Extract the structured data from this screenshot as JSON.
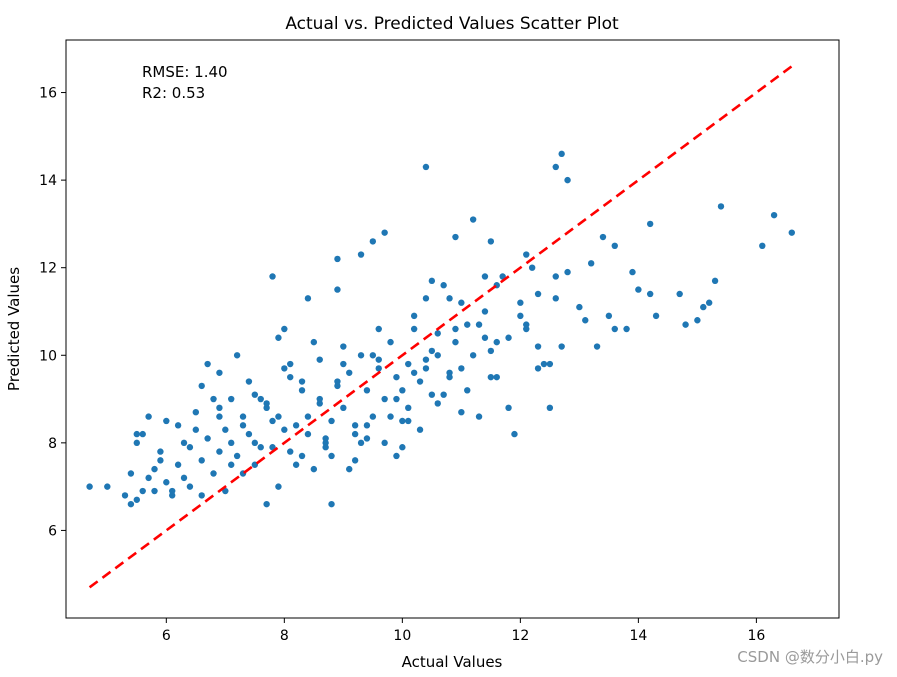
{
  "chart_data": {
    "type": "scatter",
    "title": "Actual vs. Predicted Values Scatter Plot",
    "xlabel": "Actual Values",
    "ylabel": "Predicted Values",
    "xlim": [
      4.3,
      17.4
    ],
    "ylim": [
      4.0,
      17.2
    ],
    "xticks": [
      "6",
      "8",
      "10",
      "12",
      "14",
      "16"
    ],
    "xtick_values": [
      6,
      8,
      10,
      12,
      14,
      16
    ],
    "yticks": [
      "6",
      "8",
      "10",
      "12",
      "14",
      "16"
    ],
    "ytick_values": [
      6,
      8,
      10,
      12,
      14,
      16
    ],
    "grid": false,
    "legend": "none",
    "annotations": [
      "RMSE: 1.40",
      "R2: 0.53"
    ],
    "points_color": "#1f77b4",
    "reference_line": {
      "style": "dashed",
      "color": "#ff0000",
      "x": [
        4.7,
        16.6
      ],
      "y": [
        4.7,
        16.6
      ]
    },
    "series": [
      {
        "x": [
          4.7,
          5.0,
          5.3,
          5.4,
          5.5,
          5.6,
          5.4,
          5.7,
          5.8,
          5.5,
          5.9,
          6.0,
          6.1,
          6.2,
          6.3,
          6.0,
          5.7,
          5.8,
          6.4,
          6.5,
          6.6,
          6.7,
          6.8,
          6.9,
          7.0,
          7.1,
          7.2,
          7.3,
          6.6,
          6.9,
          7.4,
          7.5,
          7.6,
          7.7,
          7.8,
          7.9,
          8.0,
          7.2,
          6.7,
          7.7,
          8.1,
          8.2,
          8.3,
          8.4,
          8.5,
          8.6,
          8.7,
          8.8,
          8.9,
          9.0,
          8.0,
          7.9,
          8.8,
          9.1,
          9.2,
          9.3,
          9.4,
          9.5,
          9.6,
          9.7,
          9.8,
          9.9,
          10.0,
          8.9,
          9.5,
          10.1,
          10.2,
          10.3,
          10.4,
          10.5,
          10.6,
          10.7,
          10.8,
          10.9,
          11.0,
          10.4,
          10.6,
          11.1,
          11.2,
          11.3,
          11.4,
          11.5,
          11.6,
          11.7,
          11.8,
          12.0,
          12.1,
          12.2,
          12.3,
          12.5,
          12.6,
          12.7,
          12.8,
          13.0,
          13.2,
          13.5,
          13.8,
          14.0,
          14.3,
          14.7,
          15.0,
          15.3,
          15.4,
          16.1,
          16.3,
          16.6,
          12.7,
          12.6,
          10.4,
          11.4,
          12.8,
          13.6,
          13.9,
          14.2,
          12.3,
          12.5,
          13.3,
          13.6,
          14.8,
          15.1,
          11.9,
          12.3,
          12.1,
          11.5,
          11.2,
          11.0,
          10.9,
          10.5,
          9.7,
          9.3,
          8.9,
          8.4,
          7.8,
          7.1,
          6.5,
          5.6,
          6.2,
          6.9,
          7.5,
          8.3,
          8.6,
          9.0,
          9.6,
          10.2,
          10.8,
          11.6,
          12.6,
          13.4,
          14.2,
          15.2,
          7.0,
          7.6,
          8.2,
          8.7,
          9.2,
          9.8,
          10.3,
          11.3,
          6.3,
          7.3,
          8.8,
          9.1,
          9.4,
          10.0,
          10.7,
          11.8,
          6.8,
          7.4,
          8.1,
          8.5,
          9.9,
          10.6,
          11.1,
          12.0,
          6.1,
          7.9,
          8.0,
          9.4,
          9.9,
          10.1,
          5.9,
          6.4,
          7.3,
          7.8,
          8.4,
          8.9,
          9.3,
          9.7,
          10.2,
          10.8,
          11.4,
          12.1,
          13.1,
          5.5,
          6.6,
          7.1,
          7.7,
          8.3,
          8.7,
          9.2,
          9.6,
          10.1,
          10.5,
          11.0,
          11.6,
          6.9,
          7.5,
          8.1,
          8.6,
          9.0,
          9.5,
          10.0,
          10.4,
          10.9,
          11.5,
          12.4
        ],
        "y": [
          7.0,
          7.0,
          6.8,
          6.6,
          6.7,
          6.9,
          7.3,
          7.2,
          6.9,
          8.2,
          7.8,
          7.1,
          6.8,
          7.5,
          8.0,
          8.5,
          8.6,
          7.4,
          7.9,
          8.3,
          7.6,
          8.1,
          7.3,
          8.6,
          6.9,
          8.0,
          7.7,
          8.4,
          9.3,
          9.6,
          8.2,
          7.5,
          9.0,
          8.8,
          7.9,
          8.6,
          8.3,
          10.0,
          9.8,
          6.6,
          7.8,
          8.4,
          9.2,
          8.6,
          7.4,
          8.9,
          7.9,
          8.5,
          9.4,
          8.8,
          10.6,
          10.4,
          6.6,
          9.6,
          8.2,
          10.0,
          9.2,
          8.6,
          9.7,
          8.0,
          10.3,
          9.0,
          8.5,
          11.5,
          12.6,
          9.8,
          10.6,
          9.4,
          11.3,
          10.1,
          8.9,
          11.6,
          9.6,
          10.3,
          11.2,
          9.9,
          10.5,
          9.2,
          10.0,
          10.7,
          11.0,
          9.5,
          10.3,
          11.8,
          10.4,
          11.2,
          10.6,
          12.0,
          11.4,
          9.8,
          11.3,
          10.2,
          11.9,
          11.1,
          12.1,
          10.9,
          10.6,
          11.5,
          10.9,
          11.4,
          10.8,
          11.7,
          13.4,
          12.5,
          13.2,
          12.8,
          14.6,
          14.3,
          14.3,
          11.8,
          14.0,
          12.5,
          11.9,
          13.0,
          9.7,
          8.8,
          10.2,
          10.6,
          10.7,
          11.1,
          8.2,
          10.2,
          12.3,
          12.6,
          13.1,
          9.7,
          12.7,
          11.7,
          12.8,
          12.3,
          12.2,
          11.3,
          11.8,
          9.0,
          8.7,
          8.2,
          8.4,
          8.8,
          9.1,
          9.4,
          9.9,
          10.2,
          10.6,
          10.9,
          11.3,
          11.6,
          11.8,
          12.7,
          11.4,
          11.2,
          8.3,
          7.9,
          7.5,
          8.0,
          7.6,
          8.6,
          8.3,
          8.6,
          7.2,
          8.6,
          7.7,
          7.4,
          8.4,
          7.9,
          9.1,
          8.8,
          9.0,
          9.4,
          9.8,
          10.3,
          9.5,
          10.0,
          10.7,
          10.9,
          6.9,
          7.0,
          9.7,
          8.1,
          7.7,
          8.5,
          7.6,
          7.0,
          7.3,
          8.5,
          8.2,
          9.3,
          8.0,
          9.0,
          9.6,
          9.5,
          10.4,
          10.7,
          10.8,
          8.0,
          6.8,
          7.5,
          8.9,
          7.7,
          8.1,
          8.4,
          9.9,
          8.8,
          9.1,
          8.7,
          9.5,
          7.8,
          8.0,
          9.5,
          9.0,
          9.8,
          10.0,
          9.2,
          9.7,
          10.6,
          10.1,
          9.8
        ]
      }
    ]
  },
  "watermark": "CSDN @数分小白.py"
}
